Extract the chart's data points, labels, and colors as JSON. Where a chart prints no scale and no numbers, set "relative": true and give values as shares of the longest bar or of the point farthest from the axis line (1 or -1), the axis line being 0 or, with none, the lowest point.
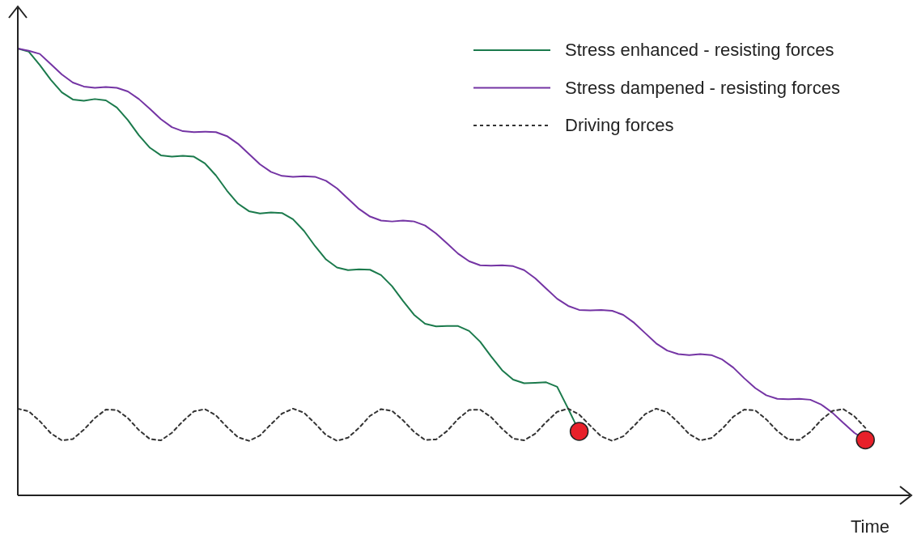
{
  "chart_data": {
    "type": "line",
    "relative": true,
    "xlabel": "Time",
    "legend": "top right",
    "categories": [
      null,
      null,
      null,
      null,
      null,
      null,
      null,
      null,
      null,
      null,
      null,
      null,
      null,
      null,
      null,
      null,
      null,
      null,
      null,
      null,
      null,
      null,
      null,
      null,
      null,
      null,
      null,
      null,
      null,
      null,
      null,
      null,
      null,
      null,
      null,
      null,
      null,
      null,
      null,
      null,
      null,
      null,
      null,
      null,
      null,
      null,
      null,
      null,
      null,
      null,
      null,
      null,
      null,
      null,
      null,
      null,
      null,
      null,
      null,
      null,
      null,
      null,
      null,
      null,
      null,
      null,
      null,
      null,
      null,
      null,
      null,
      null,
      null,
      null,
      null,
      null,
      null,
      null
    ],
    "series": [
      {
        "name": "Stress enhanced - resisting forces",
        "color": "#1b7a4c",
        "line_style": "solid",
        "values": [
          1.0,
          0.993,
          0.963,
          0.93,
          0.902,
          0.886,
          0.883,
          0.887,
          0.884,
          0.868,
          0.84,
          0.806,
          0.778,
          0.761,
          0.758,
          0.76,
          0.758,
          0.743,
          0.716,
          0.682,
          0.653,
          0.636,
          0.631,
          0.633,
          0.632,
          0.618,
          0.592,
          0.558,
          0.528,
          0.51,
          0.504,
          0.506,
          0.505,
          0.493,
          0.468,
          0.435,
          0.404,
          0.384,
          0.378,
          0.379,
          0.379,
          0.368,
          0.344,
          0.311,
          0.28,
          0.259,
          0.251,
          0.252,
          0.253,
          0.243,
          0.194,
          0.143,
          null,
          null,
          null,
          null,
          null,
          null,
          null,
          null,
          null,
          null,
          null,
          null,
          null,
          null,
          null,
          null,
          null,
          null,
          null,
          null,
          null,
          null,
          null,
          null,
          null,
          null
        ]
      },
      {
        "name": "Stress dampened - resisting forces",
        "color": "#7434a4",
        "line_style": "solid",
        "values": [
          1.0,
          0.995,
          0.988,
          0.965,
          0.942,
          0.924,
          0.915,
          0.912,
          0.914,
          0.912,
          0.904,
          0.887,
          0.865,
          0.842,
          0.824,
          0.815,
          0.813,
          0.814,
          0.813,
          0.804,
          0.787,
          0.764,
          0.741,
          0.724,
          0.715,
          0.713,
          0.714,
          0.713,
          0.704,
          0.687,
          0.664,
          0.641,
          0.624,
          0.615,
          0.613,
          0.615,
          0.613,
          0.604,
          0.586,
          0.564,
          0.541,
          0.524,
          0.515,
          0.514,
          0.515,
          0.513,
          0.504,
          0.486,
          0.463,
          0.44,
          0.424,
          0.415,
          0.414,
          0.415,
          0.413,
          0.404,
          0.386,
          0.363,
          0.34,
          0.324,
          0.316,
          0.314,
          0.316,
          0.314,
          0.304,
          0.286,
          0.262,
          0.24,
          0.224,
          0.216,
          0.215,
          0.216,
          0.214,
          0.203,
          0.185,
          0.162,
          0.14,
          0.124
        ]
      },
      {
        "name": "Driving forces",
        "color": "#333333",
        "line_style": "dotted",
        "values": [
          0.194,
          0.188,
          0.166,
          0.139,
          0.123,
          0.126,
          0.147,
          0.173,
          0.192,
          0.191,
          0.173,
          0.146,
          0.126,
          0.123,
          0.14,
          0.166,
          0.188,
          0.193,
          0.179,
          0.153,
          0.13,
          0.122,
          0.134,
          0.159,
          0.183,
          0.194,
          0.185,
          0.161,
          0.135,
          0.122,
          0.129,
          0.151,
          0.178,
          0.193,
          0.189,
          0.168,
          0.142,
          0.124,
          0.125,
          0.144,
          0.171,
          0.191,
          0.192,
          0.175,
          0.149,
          0.127,
          0.123,
          0.138,
          0.164,
          0.187,
          0.194,
          0.181,
          0.156,
          0.132,
          0.122,
          0.132,
          0.156,
          0.182,
          0.194,
          0.186,
          0.163,
          0.137,
          0.123,
          0.128,
          0.149,
          0.176,
          0.192,
          0.19,
          0.17,
          0.144,
          0.125,
          0.124,
          0.142,
          0.169,
          0.189,
          0.193,
          0.177,
          0.151
        ]
      }
    ]
  }
}
